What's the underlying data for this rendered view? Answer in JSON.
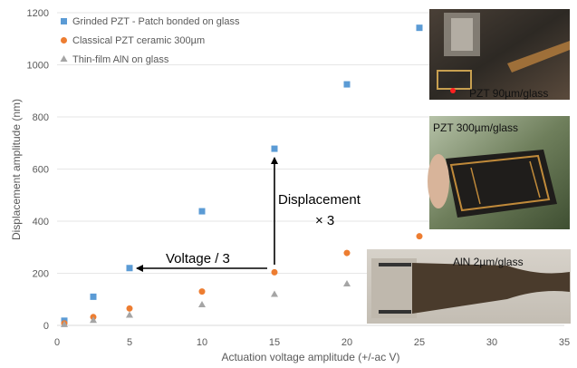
{
  "chart_data": {
    "type": "scatter",
    "xlabel": "Actuation voltage amplitude (+/-ac V)",
    "ylabel": "Displacement amplitude (nm)",
    "xlim": [
      0,
      35
    ],
    "ylim": [
      0,
      1200
    ],
    "x_ticks": [
      "0",
      "5",
      "10",
      "15",
      "20",
      "25",
      "30",
      "35"
    ],
    "y_ticks": [
      "0",
      "200",
      "400",
      "600",
      "800",
      "1000",
      "1200"
    ],
    "grid": "horizontal",
    "legend_position": "top-left",
    "series": [
      {
        "name": "Grinded PZT - Patch bonded on glass",
        "marker": "square",
        "color": "#5b9bd5",
        "points": [
          [
            0.5,
            18
          ],
          [
            2.5,
            110
          ],
          [
            5,
            220
          ],
          [
            10,
            438
          ],
          [
            15,
            678
          ],
          [
            20,
            925
          ],
          [
            25,
            1142
          ]
        ]
      },
      {
        "name": "Classical PZT ceramic 300µm",
        "marker": "circle",
        "color": "#ed7d31",
        "points": [
          [
            0.5,
            8
          ],
          [
            2.5,
            32
          ],
          [
            5,
            65
          ],
          [
            10,
            130
          ],
          [
            15,
            204
          ],
          [
            20,
            278
          ],
          [
            25,
            342
          ]
        ]
      },
      {
        "name": "Thin-film AlN on glass",
        "marker": "triangle",
        "color": "#a5a5a5",
        "points": [
          [
            0.5,
            4
          ],
          [
            2.5,
            20
          ],
          [
            5,
            40
          ],
          [
            10,
            80
          ],
          [
            15,
            120
          ],
          [
            20,
            160
          ],
          [
            25,
            200
          ]
        ]
      }
    ],
    "annotations": {
      "voltage": "Voltage / 3",
      "displacement_line1": "Displacement",
      "displacement_line2": "× 3"
    },
    "photo_labels": {
      "pzt90": "PZT 90µm/glass",
      "pzt300": "PZT 300µm/glass",
      "aln": "AlN 2µm/glass"
    }
  }
}
